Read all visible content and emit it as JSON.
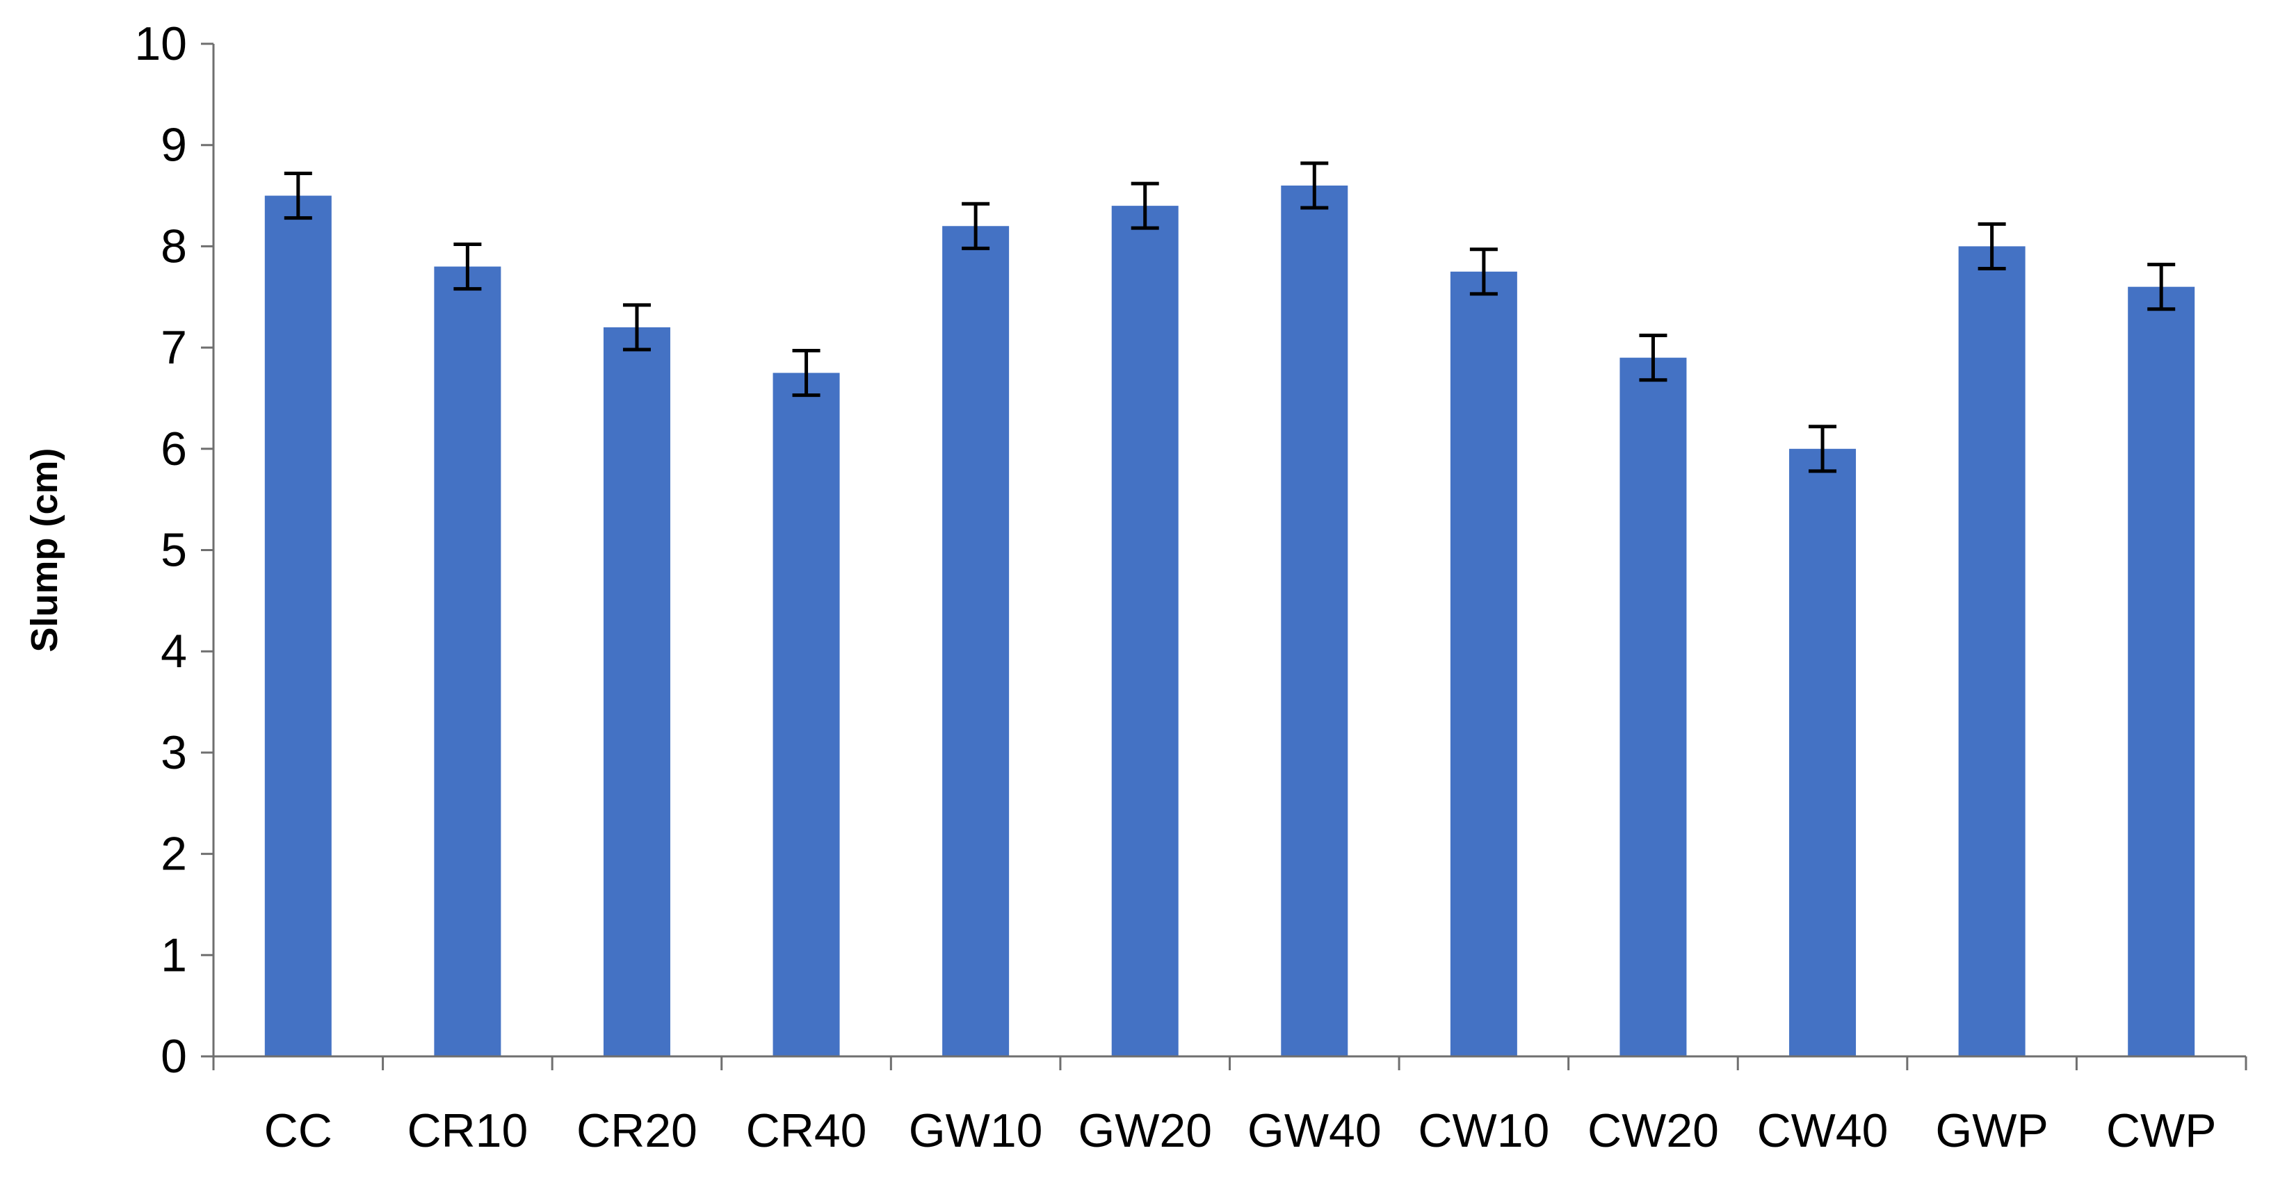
{
  "chart_data": {
    "type": "bar",
    "title": "",
    "xlabel": "",
    "ylabel": "Slump (cm)",
    "categories": [
      "CC",
      "CR10",
      "CR20",
      "CR40",
      "GW10",
      "GW20",
      "GW40",
      "CW10",
      "CW20",
      "CW40",
      "GWP",
      "CWP"
    ],
    "values": [
      8.5,
      7.8,
      7.2,
      6.75,
      8.2,
      8.4,
      8.6,
      7.75,
      6.9,
      6.0,
      8.0,
      7.6
    ],
    "error": [
      0.22,
      0.22,
      0.22,
      0.22,
      0.22,
      0.22,
      0.22,
      0.22,
      0.22,
      0.22,
      0.22,
      0.22
    ],
    "ylim": [
      0,
      10
    ],
    "yticks": [
      0,
      1,
      2,
      3,
      4,
      5,
      6,
      7,
      8,
      9,
      10
    ],
    "grid": false,
    "legend": "none",
    "bar_color": "#4472C4",
    "error_bar_color": "#000000",
    "axis_color": "#6f6f6f"
  }
}
